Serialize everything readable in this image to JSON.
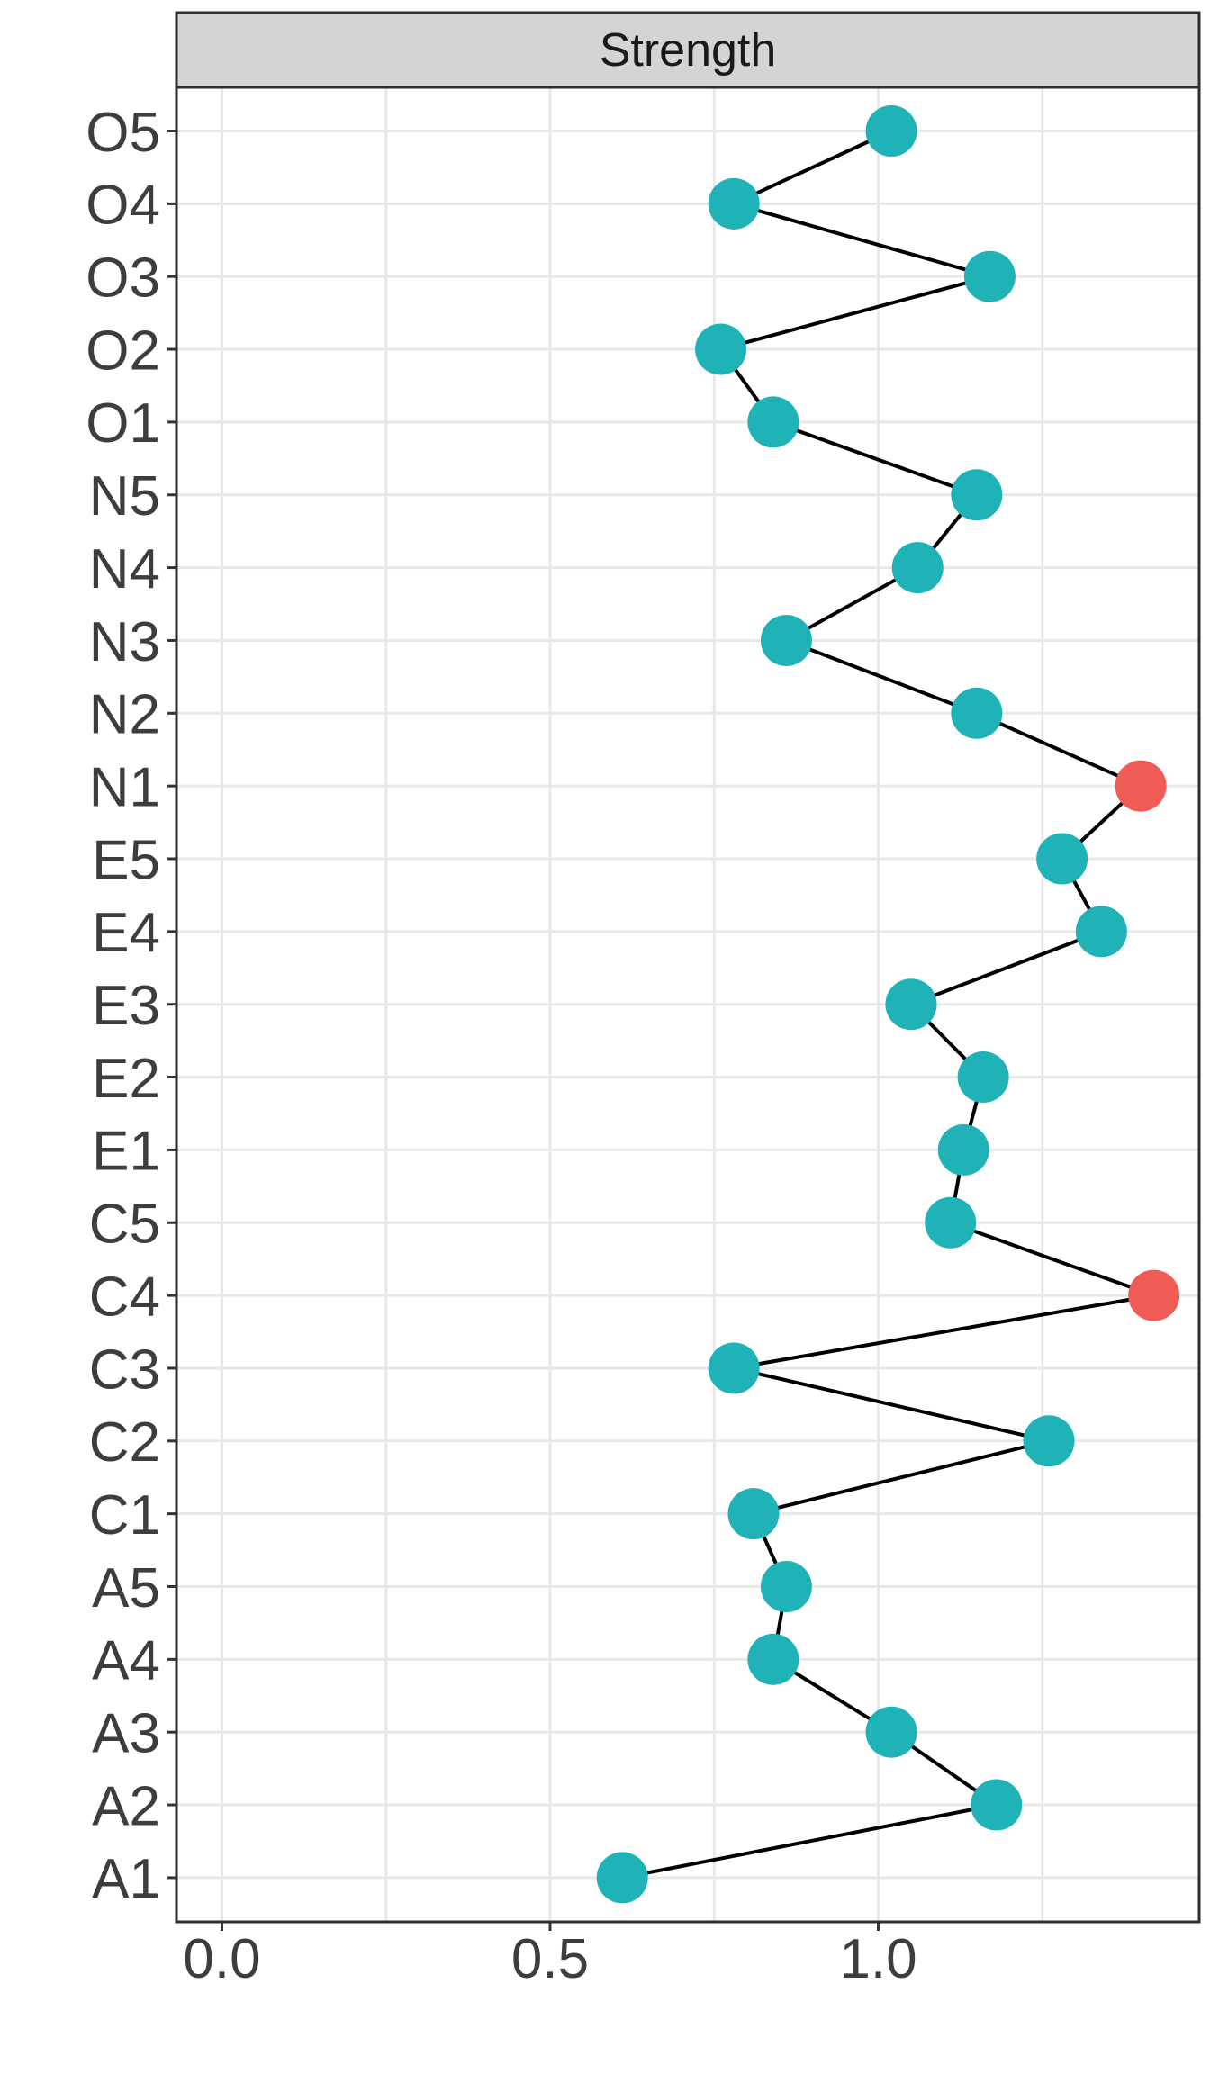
{
  "chart_data": {
    "type": "scatter",
    "title": "Strength",
    "orientation": "horizontal",
    "xlabel": "",
    "ylabel": "",
    "grid": true,
    "legend": "none",
    "x_axis": {
      "ticks": [
        {
          "label": "0.0",
          "value": 0.0
        },
        {
          "label": "0.5",
          "value": 0.5
        },
        {
          "label": "1.0",
          "value": 1.0
        }
      ],
      "minor_step": 0.25,
      "range": [
        -0.07,
        1.49
      ]
    },
    "points": [
      {
        "label": "O5",
        "value": 1.02,
        "highlight": false
      },
      {
        "label": "O4",
        "value": 0.78,
        "highlight": false
      },
      {
        "label": "O3",
        "value": 1.17,
        "highlight": false
      },
      {
        "label": "O2",
        "value": 0.76,
        "highlight": false
      },
      {
        "label": "O1",
        "value": 0.84,
        "highlight": false
      },
      {
        "label": "N5",
        "value": 1.15,
        "highlight": false
      },
      {
        "label": "N4",
        "value": 1.06,
        "highlight": false
      },
      {
        "label": "N3",
        "value": 0.86,
        "highlight": false
      },
      {
        "label": "N2",
        "value": 1.15,
        "highlight": false
      },
      {
        "label": "N1",
        "value": 1.4,
        "highlight": true
      },
      {
        "label": "E5",
        "value": 1.28,
        "highlight": false
      },
      {
        "label": "E4",
        "value": 1.34,
        "highlight": false
      },
      {
        "label": "E3",
        "value": 1.05,
        "highlight": false
      },
      {
        "label": "E2",
        "value": 1.16,
        "highlight": false
      },
      {
        "label": "E1",
        "value": 1.13,
        "highlight": false
      },
      {
        "label": "C5",
        "value": 1.11,
        "highlight": false
      },
      {
        "label": "C4",
        "value": 1.42,
        "highlight": true
      },
      {
        "label": "C3",
        "value": 0.78,
        "highlight": false
      },
      {
        "label": "C2",
        "value": 1.26,
        "highlight": false
      },
      {
        "label": "C1",
        "value": 0.81,
        "highlight": false
      },
      {
        "label": "A5",
        "value": 0.86,
        "highlight": false
      },
      {
        "label": "A4",
        "value": 0.84,
        "highlight": false
      },
      {
        "label": "A3",
        "value": 1.02,
        "highlight": false
      },
      {
        "label": "A2",
        "value": 1.18,
        "highlight": false
      },
      {
        "label": "A1",
        "value": 0.61,
        "highlight": false
      }
    ],
    "colors": {
      "point_default": "#1fb3b8",
      "point_highlight": "#f15b55",
      "line": "#000000",
      "strip_background": "#d4d4d4",
      "strip_text": "#1a1a1a",
      "panel_background": "#ffffff",
      "panel_border": "#2d2d2d",
      "gridline": "#e8e8e8",
      "tick": "#333333",
      "axis_text": "#3d3d3d"
    }
  }
}
